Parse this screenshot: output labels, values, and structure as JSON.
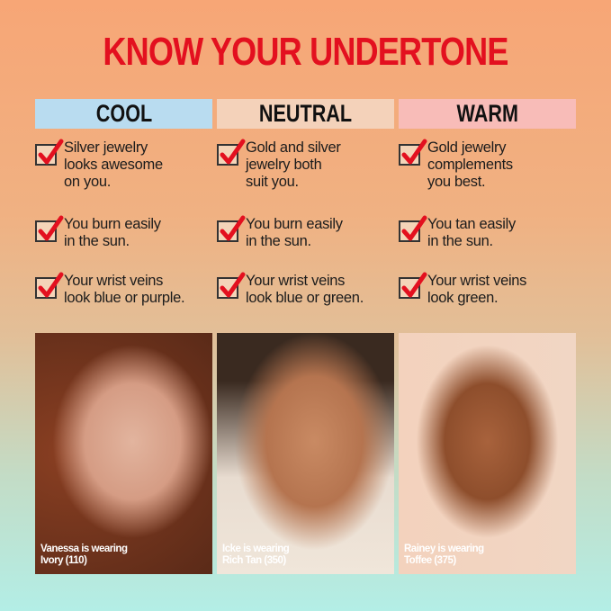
{
  "title": "KNOW YOUR UNDERTONE",
  "colors": {
    "title": "#e3101f",
    "cool": "#b9dcf0",
    "neutral": "#f4d2ba",
    "warm": "#f8bcb8",
    "check": "#e3101f"
  },
  "columns": [
    {
      "label": "COOL",
      "items": [
        "Silver jewelry\nlooks awesome\non you.",
        "You burn easily\nin the sun.",
        "Your wrist veins\nlook blue or purple."
      ],
      "caption": "Vanessa is wearing\nIvory (110)"
    },
    {
      "label": "NEUTRAL",
      "items": [
        "Gold and silver\njewelry both\nsuit you.",
        "You burn easily\nin the sun.",
        "Your wrist veins\nlook blue or green."
      ],
      "caption": "Icke is wearing\nRich Tan (350)"
    },
    {
      "label": "WARM",
      "items": [
        "Gold jewelry\ncomplements\nyou best.",
        "You tan easily\nin the sun.",
        "Your wrist veins\nlook green."
      ],
      "caption": "Rainey is wearing\nToffee (375)"
    }
  ]
}
